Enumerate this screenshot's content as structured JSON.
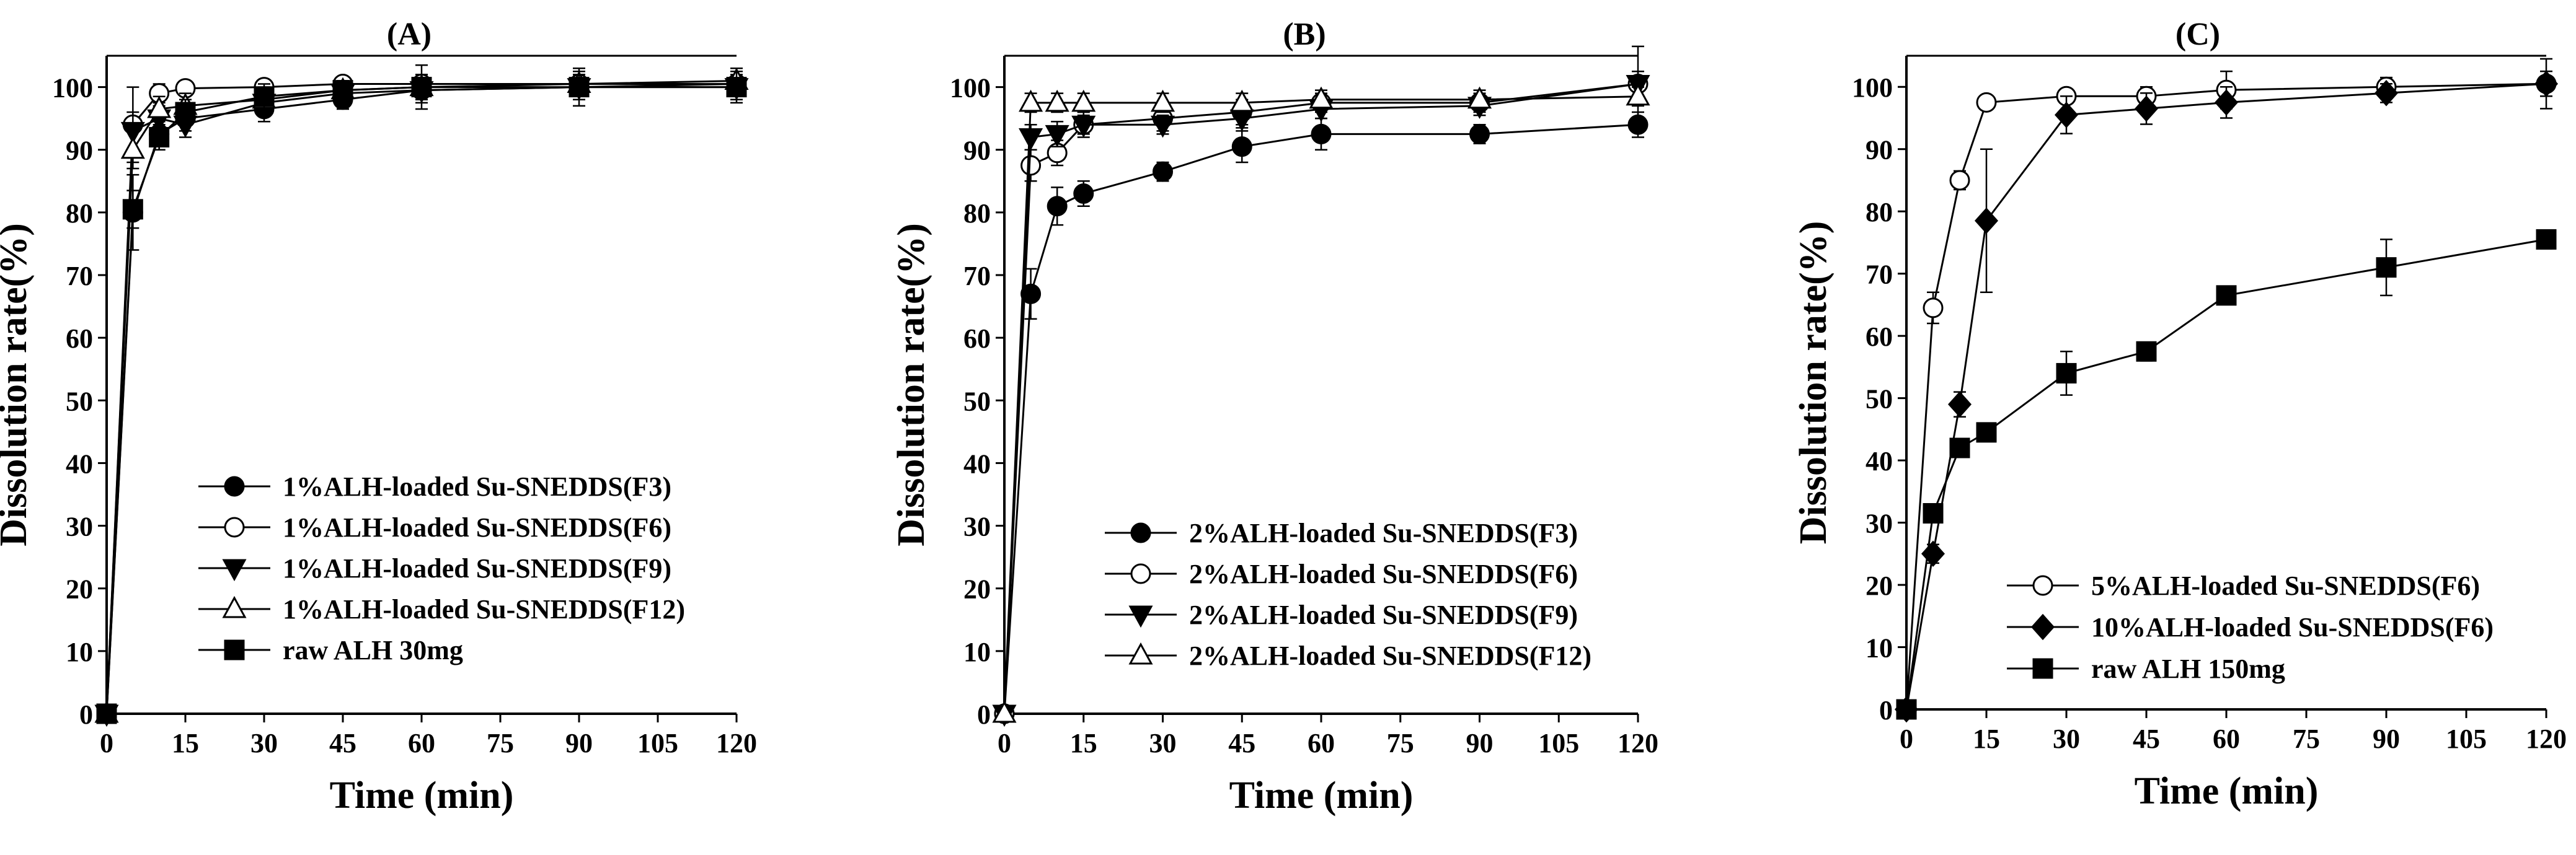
{
  "chart_data": [
    {
      "type": "line",
      "title": "(A)",
      "xlabel": "Time (min)",
      "ylabel": "Dissolution rate(%)",
      "xlim": [
        0,
        120
      ],
      "ylim": [
        0,
        105
      ],
      "xticks": [
        0,
        15,
        30,
        45,
        60,
        75,
        90,
        105,
        120
      ],
      "xtick_labels": [
        "0",
        "15",
        "30",
        "45",
        "60",
        "75",
        "90",
        "105",
        "120"
      ],
      "yticks": [
        0,
        10,
        20,
        30,
        40,
        50,
        60,
        70,
        80,
        90,
        100
      ],
      "ytick_labels": [
        "0",
        "10",
        "20",
        "30",
        "40",
        "50",
        "60",
        "70",
        "80",
        "90",
        "100"
      ],
      "x": [
        0,
        5,
        10,
        15,
        30,
        45,
        60,
        90,
        120
      ],
      "legend_position": "bottom-right",
      "series": [
        {
          "name": "1%ALH-loaded Su-SNEDDS(F3)",
          "marker": "circle-filled",
          "values": [
            0,
            80,
            92.5,
            95,
            96.5,
            98,
            99.5,
            100,
            100.5
          ],
          "err": [
            0,
            6,
            2.5,
            2,
            2,
            1.5,
            1.5,
            2,
            2
          ]
        },
        {
          "name": "1%ALH-loaded Su-SNEDDS(F6)",
          "marker": "circle-open",
          "values": [
            0,
            94,
            99,
            99.8,
            100,
            100.5,
            100.5,
            100.5,
            100.5
          ],
          "err": [
            0,
            6,
            1.5,
            1,
            1,
            1,
            1.5,
            2,
            2.5
          ]
        },
        {
          "name": "1%ALH-loaded Su-SNEDDS(F9)",
          "marker": "triangle-down-filled",
          "values": [
            0,
            93,
            95,
            94,
            97.5,
            99,
            99.5,
            100,
            100
          ],
          "err": [
            0,
            3,
            2,
            2,
            2,
            1.5,
            2,
            2,
            2
          ]
        },
        {
          "name": "1%ALH-loaded Su-SNEDDS(F12)",
          "marker": "triangle-up-open",
          "values": [
            0,
            90,
            96.5,
            97,
            98,
            99.5,
            100,
            100.5,
            101
          ],
          "err": [
            0,
            3,
            2,
            2,
            2,
            1.5,
            2,
            2,
            2
          ]
        },
        {
          "name": "raw ALH 30mg",
          "marker": "square-filled",
          "values": [
            0,
            80.5,
            92,
            96,
            98.5,
            99.5,
            100,
            100,
            100
          ],
          "err": [
            0,
            3,
            2,
            2,
            2,
            1.5,
            3.5,
            3,
            2.5
          ]
        }
      ]
    },
    {
      "type": "line",
      "title": "(B)",
      "xlabel": "Time (min)",
      "ylabel": "Dissolution rate(%)",
      "xlim": [
        0,
        120
      ],
      "ylim": [
        0,
        105
      ],
      "xticks": [
        0,
        15,
        30,
        45,
        60,
        75,
        90,
        105,
        120
      ],
      "xtick_labels": [
        "0",
        "15",
        "30",
        "45",
        "60",
        "75",
        "90",
        "105",
        "120"
      ],
      "yticks": [
        0,
        10,
        20,
        30,
        40,
        50,
        60,
        70,
        80,
        90,
        100
      ],
      "ytick_labels": [
        "0",
        "10",
        "20",
        "30",
        "40",
        "50",
        "60",
        "70",
        "80",
        "90",
        "100"
      ],
      "x": [
        0,
        5,
        10,
        15,
        30,
        45,
        60,
        90,
        120
      ],
      "legend_position": "bottom-right",
      "series": [
        {
          "name": "2%ALH-loaded Su-SNEDDS(F3)",
          "marker": "circle-filled",
          "values": [
            0,
            67,
            81,
            83,
            86.5,
            90.5,
            92.5,
            92.5,
            94
          ],
          "err": [
            0,
            4,
            3,
            2,
            1.5,
            2.5,
            2.5,
            1.5,
            2
          ]
        },
        {
          "name": "2%ALH-loaded Su-SNEDDS(F6)",
          "marker": "circle-open",
          "values": [
            0,
            87.5,
            89.5,
            94,
            95,
            96,
            97.5,
            97.5,
            100.5
          ],
          "err": [
            0,
            2.5,
            2,
            2,
            2,
            2,
            1.5,
            1.5,
            6
          ]
        },
        {
          "name": "2%ALH-loaded Su-SNEDDS(F9)",
          "marker": "triangle-down-filled",
          "values": [
            0,
            92,
            92.5,
            94,
            94,
            95,
            96.5,
            97,
            100.5
          ],
          "err": [
            0,
            2,
            2,
            1.5,
            1.5,
            1.5,
            1.5,
            1.5,
            2
          ]
        },
        {
          "name": "2%ALH-loaded Su-SNEDDS(F12)",
          "marker": "triangle-up-open",
          "values": [
            0,
            97.5,
            97.5,
            97.5,
            97.5,
            97.5,
            98,
            98,
            98.5
          ],
          "err": [
            0,
            1.5,
            1.5,
            1.5,
            1.5,
            1.5,
            1.5,
            1.5,
            1.5
          ]
        }
      ]
    },
    {
      "type": "line",
      "title": "(C)",
      "xlabel": "Time (min)",
      "ylabel": "Dissolution rate(%)",
      "xlim": [
        0,
        120
      ],
      "ylim": [
        0,
        105
      ],
      "xticks": [
        0,
        15,
        30,
        45,
        60,
        75,
        90,
        105,
        120
      ],
      "xtick_labels": [
        "0",
        "15",
        "30",
        "45",
        "60",
        "75",
        "90",
        "105",
        "120"
      ],
      "yticks": [
        0,
        10,
        20,
        30,
        40,
        50,
        60,
        70,
        80,
        90,
        100
      ],
      "ytick_labels": [
        "0",
        "10",
        "20",
        "30",
        "40",
        "50",
        "60",
        "70",
        "80",
        "90",
        "100"
      ],
      "x": [
        0,
        5,
        10,
        15,
        30,
        45,
        60,
        90,
        120
      ],
      "legend_position": "bottom-right",
      "series": [
        {
          "name": "5%ALH-loaded Su-SNEDDS(F6)",
          "marker": "circle-open",
          "values": [
            0,
            64.5,
            85,
            97.5,
            98.5,
            98.5,
            99.5,
            100,
            100.5
          ],
          "err": [
            0,
            2.5,
            1.5,
            1,
            1,
            1.5,
            3,
            1.5,
            2
          ]
        },
        {
          "name": "10%ALH-loaded Su-SNEDDS(F6)",
          "marker": "diamond-filled",
          "values": [
            0,
            25,
            49,
            78.5,
            95.5,
            96.5,
            97.5,
            99,
            100.5
          ],
          "err": [
            0,
            1.5,
            2,
            11.5,
            3,
            2.5,
            2.5,
            1.5,
            4
          ]
        },
        {
          "name": "raw ALH 150mg",
          "marker": "square-filled",
          "values": [
            0,
            31.5,
            42,
            44.5,
            54,
            57.5,
            66.5,
            71,
            75.5
          ],
          "err": [
            0,
            1.5,
            1,
            1,
            3.5,
            1.5,
            1,
            4.5,
            1.5
          ]
        }
      ]
    }
  ]
}
